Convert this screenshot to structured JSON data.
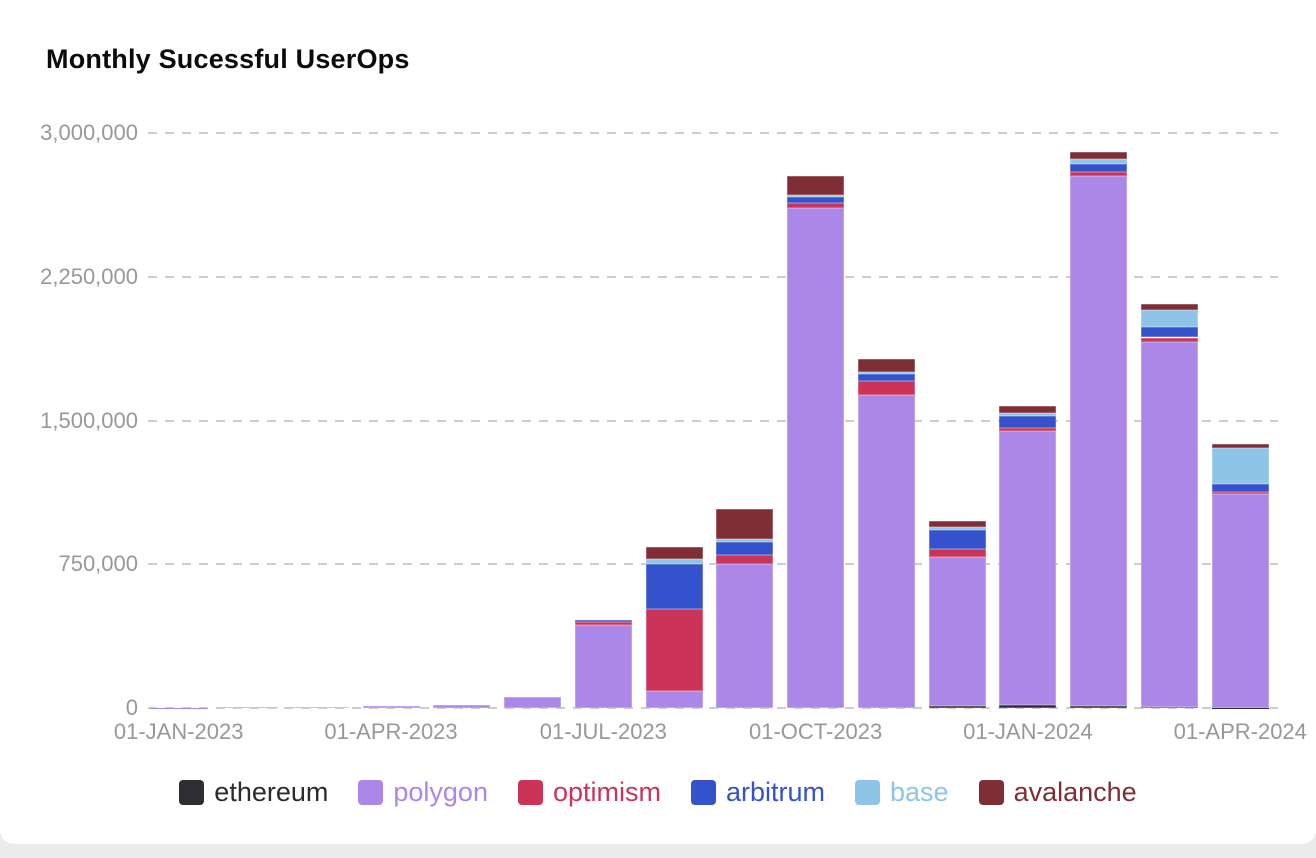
{
  "title": "Monthly Sucessful UserOps",
  "chart_data": {
    "type": "bar",
    "stacked": true,
    "title": "Monthly Sucessful UserOps",
    "xlabel": "",
    "ylabel": "",
    "ylim": [
      0,
      3000000
    ],
    "grid": "horizontal-dashed",
    "legend_position": "bottom",
    "categories": [
      "JAN-2023",
      "FEB-2023",
      "MAR-2023",
      "APR-2023",
      "MAY-2023",
      "JUN-2023",
      "JUL-2023",
      "AUG-2023",
      "SEP-2023",
      "OCT-2023",
      "NOV-2023",
      "DEC-2023",
      "JAN-2024",
      "FEB-2024",
      "MAR-2024",
      "APR-2024"
    ],
    "x_tick_labels": [
      "01-JAN-2023",
      "01-APR-2023",
      "01-JUL-2023",
      "01-OCT-2023",
      "01-JAN-2024",
      "01-APR-2024"
    ],
    "x_tick_positions": [
      0,
      3,
      6,
      9,
      12,
      15
    ],
    "y_tick_values": [
      0,
      750000,
      1500000,
      2250000,
      3000000
    ],
    "y_tick_labels": [
      "0",
      "750,000",
      "1,500,000",
      "2,250,000",
      "3,000,000"
    ],
    "series": [
      {
        "name": "ethereum",
        "color": "#2e2e32",
        "label_color": "#2b2b2e",
        "values": [
          0,
          0,
          0,
          0,
          0,
          0,
          0,
          0,
          0,
          0,
          0,
          8000,
          15000,
          8000,
          5000,
          2000
        ]
      },
      {
        "name": "polygon",
        "color": "#ab87e8",
        "label_color": "#ab87e8",
        "values": [
          2000,
          3000,
          5000,
          9000,
          18000,
          55000,
          435000,
          90000,
          750000,
          2610000,
          1635000,
          780000,
          1430000,
          2770000,
          1905000,
          1115000
        ]
      },
      {
        "name": "optimism",
        "color": "#cb3458",
        "label_color": "#cb3458",
        "values": [
          0,
          0,
          0,
          0,
          0,
          0,
          16000,
          425000,
          49000,
          26000,
          70000,
          39000,
          18000,
          18000,
          23000,
          10000
        ]
      },
      {
        "name": "arbitrum",
        "color": "#3452cb",
        "label_color": "#3452cb",
        "values": [
          0,
          0,
          0,
          0,
          0,
          0,
          7000,
          235000,
          66000,
          31000,
          40000,
          102000,
          63000,
          44000,
          56000,
          44000
        ]
      },
      {
        "name": "base",
        "color": "#8fc4e9",
        "label_color": "#8fc4e9",
        "values": [
          0,
          0,
          0,
          0,
          0,
          0,
          0,
          30000,
          15000,
          8000,
          8000,
          17000,
          12000,
          26000,
          87000,
          184000
        ]
      },
      {
        "name": "avalanche",
        "color": "#7f2e36",
        "label_color": "#7f2e36",
        "values": [
          0,
          0,
          0,
          0,
          0,
          0,
          0,
          60000,
          160000,
          100000,
          66000,
          30000,
          40000,
          35000,
          31000,
          21000
        ]
      }
    ]
  }
}
